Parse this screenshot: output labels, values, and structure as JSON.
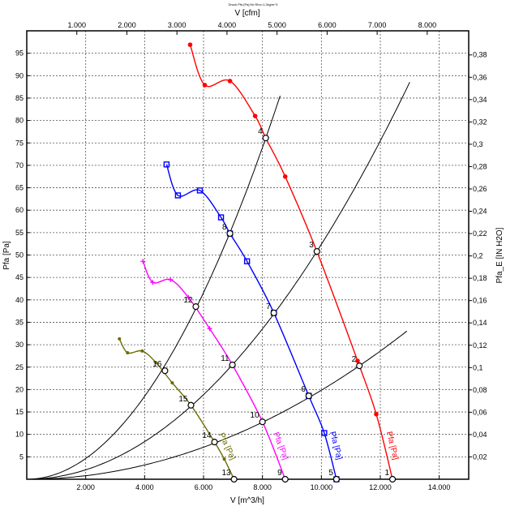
{
  "chart_data": {
    "type": "line",
    "title": "Druck Pfa [Pa] für Rho=1.2kg/m^3",
    "xlabel": "V [m^3/h]",
    "x2label": "V [cfm]",
    "ylabel": "Pfa [Pa]",
    "y2label": "Pfa_E [IN H2O]",
    "xlim": [
      0,
      15000
    ],
    "ylim": [
      0,
      100
    ],
    "y2lim": [
      0,
      0.4016
    ],
    "grid": true,
    "x_ticks": [
      2000,
      4000,
      6000,
      8000,
      10000,
      12000,
      14000
    ],
    "x_tick_labels": [
      "2.000",
      "4.000",
      "6.000",
      "8.000",
      "10.000",
      "12.000",
      "14.000"
    ],
    "x2_ticks_cfm": [
      1000,
      2000,
      3000,
      4000,
      5000,
      6000,
      7000,
      8000
    ],
    "x2_tick_labels": [
      "1.000",
      "2.000",
      "3.000",
      "4.000",
      "5.000",
      "6.000",
      "7.000",
      "8.000"
    ],
    "y_ticks": [
      5,
      10,
      15,
      20,
      25,
      30,
      35,
      40,
      45,
      50,
      55,
      60,
      65,
      70,
      75,
      80,
      85,
      90,
      95
    ],
    "y_tick_labels": [
      "5",
      "10",
      "15",
      "20",
      "25",
      "30",
      "35",
      "40",
      "45",
      "50",
      "55",
      "60",
      "65",
      "70",
      "75",
      "80",
      "85",
      "90",
      "95"
    ],
    "y2_ticks": [
      0.02,
      0.04,
      0.06,
      0.08,
      0.1,
      0.12,
      0.14,
      0.16,
      0.18,
      0.2,
      0.22,
      0.24,
      0.26,
      0.28,
      0.3,
      0.32,
      0.34,
      0.36,
      0.38
    ],
    "y2_tick_labels": [
      "0,02",
      "0,04",
      "0,06",
      "0,08",
      "0,1",
      "0,12",
      "0,14",
      "0,16",
      "0,18",
      "0,2",
      "0,22",
      "0,24",
      "0,26",
      "0,28",
      "0,3",
      "0,32",
      "0,34",
      "0,36",
      "0,38"
    ],
    "series": [
      {
        "label": "Pfa [Pa]",
        "color": "#ff0000",
        "marker": "circle",
        "x": [
          5545,
          6042,
          6897,
          7752,
          8110,
          8772,
          9848,
          11228,
          11862,
          12414
        ],
        "y": [
          96.9,
          87.9,
          88.8,
          81.0,
          76.1,
          67.5,
          50.8,
          26.4,
          14.5,
          0
        ]
      },
      {
        "label": "Pfa [Pa]",
        "color": "#0000ff",
        "marker": "square",
        "x": [
          4745,
          5131,
          5876,
          6593,
          6897,
          7476,
          8386,
          9572,
          10097,
          10511
        ],
        "y": [
          70.2,
          63.3,
          64.4,
          58.4,
          54.8,
          48.6,
          37.1,
          18.6,
          10.3,
          0
        ]
      },
      {
        "label": "Pfa [Pa]",
        "color": "#ff00ff",
        "marker": "plus",
        "x": [
          3945,
          4276,
          4883,
          5490,
          6207,
          6980,
          8000,
          8772
        ],
        "y": [
          48.6,
          43.9,
          44.5,
          40.5,
          33.6,
          25.5,
          12.8,
          0
        ]
      },
      {
        "label": "Pfa [Pa]",
        "color": "#6b6b00",
        "marker": "dot",
        "x": [
          3145,
          3421,
          3918,
          4386,
          4938,
          5573,
          6373,
          6704,
          7035
        ],
        "y": [
          31.3,
          28.2,
          28.6,
          26.0,
          21.5,
          16.5,
          8.3,
          4.5,
          0
        ]
      }
    ],
    "system_curves": [
      {
        "k": 1.156e-06,
        "x_max": 8600
      },
      {
        "k": 5.24e-07,
        "x_max": 13020
      },
      {
        "k": 1.985e-07,
        "x_max": 12900
      }
    ],
    "operating_points": [
      {
        "label": "1",
        "x": 12414,
        "y": 0
      },
      {
        "label": "2",
        "x": 11290,
        "y": 25.3
      },
      {
        "label": "3",
        "x": 9848,
        "y": 50.8
      },
      {
        "label": "4",
        "x": 8110,
        "y": 76.1
      },
      {
        "label": "5",
        "x": 10511,
        "y": 0
      },
      {
        "label": "6",
        "x": 9572,
        "y": 18.6
      },
      {
        "label": "7",
        "x": 8386,
        "y": 37.1
      },
      {
        "label": "8",
        "x": 6897,
        "y": 54.8
      },
      {
        "label": "9",
        "x": 8772,
        "y": 0
      },
      {
        "label": "10",
        "x": 8000,
        "y": 12.8
      },
      {
        "label": "11",
        "x": 6980,
        "y": 25.5
      },
      {
        "label": "12",
        "x": 5739,
        "y": 38.5
      },
      {
        "label": "13",
        "x": 7035,
        "y": 0
      },
      {
        "label": "14",
        "x": 6373,
        "y": 8.3
      },
      {
        "label": "15",
        "x": 5573,
        "y": 16.5
      },
      {
        "label": "16",
        "x": 4690,
        "y": 24.2
      }
    ]
  }
}
